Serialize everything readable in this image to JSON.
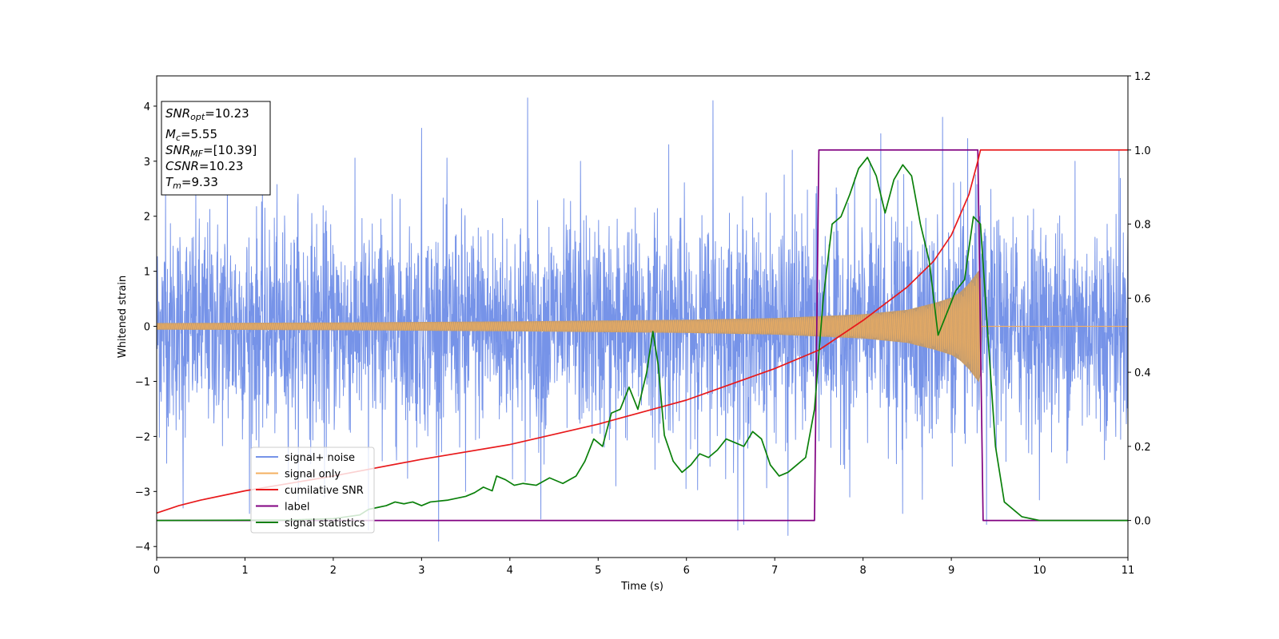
{
  "chart_data": {
    "type": "line",
    "title": "",
    "xlabel": "Time (s)",
    "ylabel": "Whitened strain",
    "xlim": [
      0,
      11
    ],
    "ylim": [
      -4.2,
      4.55
    ],
    "y2lim": [
      -0.1,
      1.2
    ],
    "x_ticks": [
      0,
      1,
      2,
      3,
      4,
      5,
      6,
      7,
      8,
      9,
      10,
      11
    ],
    "y_ticks": [
      -4,
      -3,
      -2,
      -1,
      0,
      1,
      2,
      3,
      4
    ],
    "y2_ticks": [
      0.0,
      0.2,
      0.4,
      0.6,
      0.8,
      1.0,
      1.2
    ],
    "grid": false,
    "legend_position": "lower-left",
    "annotation": {
      "lines": [
        {
          "sym": "SNR",
          "sub": "opt",
          "value": "=10.23"
        },
        {
          "sym": "M",
          "sub": "c",
          "value": "=5.55"
        },
        {
          "sym": "SNR",
          "sub": "MF",
          "value": "=[10.39]"
        },
        {
          "sym": "CSNR",
          "sub": "",
          "value": "=10.23"
        },
        {
          "sym": "T",
          "sub": "m",
          "value": "=9.33"
        }
      ]
    },
    "series": [
      {
        "name": "signal+ noise",
        "color": "#7693e8",
        "axis": "left",
        "kind": "noise",
        "noise_sigma": 1.0,
        "peaks": [
          [
            0.1,
            2.6
          ],
          [
            0.3,
            -3.3
          ],
          [
            0.8,
            3.0
          ],
          [
            1.05,
            -3.4
          ],
          [
            1.6,
            2.4
          ],
          [
            1.9,
            -3.1
          ],
          [
            2.4,
            -3.7
          ],
          [
            3.0,
            3.6
          ],
          [
            3.5,
            -3.0
          ],
          [
            4.2,
            4.15
          ],
          [
            4.35,
            -3.5
          ],
          [
            4.8,
            3.0
          ],
          [
            5.2,
            -2.9
          ],
          [
            5.8,
            3.3
          ],
          [
            6.3,
            4.1
          ],
          [
            6.65,
            -3.6
          ],
          [
            7.15,
            -3.8
          ],
          [
            7.2,
            3.2
          ],
          [
            7.85,
            -3.1
          ],
          [
            8.2,
            3.5
          ],
          [
            8.45,
            -3.4
          ],
          [
            8.9,
            3.8
          ],
          [
            9.4,
            -3.6
          ],
          [
            10.4,
            3.0
          ],
          [
            10.9,
            3.2
          ]
        ]
      },
      {
        "name": "signal only",
        "color": "#f4b060",
        "fill_color": "#bf9a70",
        "axis": "left",
        "kind": "chirp",
        "envelope": [
          [
            0.0,
            0.06
          ],
          [
            2.0,
            0.07
          ],
          [
            4.0,
            0.09
          ],
          [
            6.0,
            0.12
          ],
          [
            7.0,
            0.15
          ],
          [
            8.0,
            0.22
          ],
          [
            8.5,
            0.3
          ],
          [
            8.8,
            0.42
          ],
          [
            9.0,
            0.52
          ],
          [
            9.1,
            0.62
          ],
          [
            9.2,
            0.78
          ],
          [
            9.28,
            0.95
          ],
          [
            9.33,
            1.05
          ],
          [
            9.34,
            0.0
          ],
          [
            11.0,
            0.0
          ]
        ]
      },
      {
        "name": "cumilative SNR",
        "color": "#e8191b",
        "axis": "right",
        "points": [
          [
            0.0,
            0.02
          ],
          [
            0.25,
            0.04
          ],
          [
            0.5,
            0.055
          ],
          [
            1.0,
            0.08
          ],
          [
            2.0,
            0.12
          ],
          [
            3.0,
            0.165
          ],
          [
            4.0,
            0.205
          ],
          [
            5.0,
            0.26
          ],
          [
            6.0,
            0.325
          ],
          [
            7.0,
            0.41
          ],
          [
            7.5,
            0.46
          ],
          [
            8.0,
            0.54
          ],
          [
            8.5,
            0.63
          ],
          [
            8.8,
            0.7
          ],
          [
            9.0,
            0.77
          ],
          [
            9.2,
            0.88
          ],
          [
            9.3,
            0.97
          ],
          [
            9.33,
            1.0
          ],
          [
            11.0,
            1.0
          ]
        ]
      },
      {
        "name": "label",
        "color": "#800080",
        "axis": "right",
        "points": [
          [
            0.0,
            0.0
          ],
          [
            7.45,
            0.0
          ],
          [
            7.5,
            1.0
          ],
          [
            9.3,
            1.0
          ],
          [
            9.36,
            0.0
          ],
          [
            11.0,
            0.0
          ]
        ]
      },
      {
        "name": "signal statistics",
        "color": "#0a800a",
        "axis": "right",
        "points": [
          [
            0.0,
            0.0
          ],
          [
            1.5,
            0.001
          ],
          [
            2.0,
            0.005
          ],
          [
            2.3,
            0.015
          ],
          [
            2.4,
            0.03
          ],
          [
            2.5,
            0.035
          ],
          [
            2.6,
            0.04
          ],
          [
            2.7,
            0.05
          ],
          [
            2.8,
            0.045
          ],
          [
            2.9,
            0.05
          ],
          [
            3.0,
            0.04
          ],
          [
            3.1,
            0.05
          ],
          [
            3.3,
            0.055
          ],
          [
            3.5,
            0.065
          ],
          [
            3.6,
            0.075
          ],
          [
            3.7,
            0.09
          ],
          [
            3.8,
            0.08
          ],
          [
            3.85,
            0.12
          ],
          [
            3.95,
            0.11
          ],
          [
            4.05,
            0.095
          ],
          [
            4.15,
            0.1
          ],
          [
            4.3,
            0.095
          ],
          [
            4.45,
            0.115
          ],
          [
            4.6,
            0.1
          ],
          [
            4.75,
            0.12
          ],
          [
            4.85,
            0.16
          ],
          [
            4.95,
            0.22
          ],
          [
            5.0,
            0.21
          ],
          [
            5.05,
            0.2
          ],
          [
            5.15,
            0.29
          ],
          [
            5.25,
            0.3
          ],
          [
            5.35,
            0.36
          ],
          [
            5.45,
            0.3
          ],
          [
            5.55,
            0.4
          ],
          [
            5.62,
            0.51
          ],
          [
            5.68,
            0.42
          ],
          [
            5.75,
            0.23
          ],
          [
            5.85,
            0.16
          ],
          [
            5.95,
            0.13
          ],
          [
            6.05,
            0.15
          ],
          [
            6.15,
            0.18
          ],
          [
            6.25,
            0.17
          ],
          [
            6.35,
            0.19
          ],
          [
            6.45,
            0.22
          ],
          [
            6.55,
            0.21
          ],
          [
            6.65,
            0.2
          ],
          [
            6.75,
            0.24
          ],
          [
            6.85,
            0.22
          ],
          [
            6.95,
            0.15
          ],
          [
            7.05,
            0.12
          ],
          [
            7.15,
            0.13
          ],
          [
            7.25,
            0.15
          ],
          [
            7.35,
            0.17
          ],
          [
            7.45,
            0.3
          ],
          [
            7.55,
            0.6
          ],
          [
            7.65,
            0.8
          ],
          [
            7.75,
            0.82
          ],
          [
            7.85,
            0.88
          ],
          [
            7.95,
            0.95
          ],
          [
            8.05,
            0.98
          ],
          [
            8.15,
            0.93
          ],
          [
            8.25,
            0.83
          ],
          [
            8.35,
            0.92
          ],
          [
            8.45,
            0.96
          ],
          [
            8.55,
            0.93
          ],
          [
            8.65,
            0.8
          ],
          [
            8.75,
            0.7
          ],
          [
            8.85,
            0.5
          ],
          [
            8.95,
            0.56
          ],
          [
            9.05,
            0.62
          ],
          [
            9.15,
            0.65
          ],
          [
            9.25,
            0.82
          ],
          [
            9.33,
            0.8
          ],
          [
            9.4,
            0.55
          ],
          [
            9.5,
            0.2
          ],
          [
            9.6,
            0.05
          ],
          [
            9.8,
            0.01
          ],
          [
            10.0,
            0.0
          ],
          [
            11.0,
            0.0
          ]
        ]
      }
    ]
  }
}
